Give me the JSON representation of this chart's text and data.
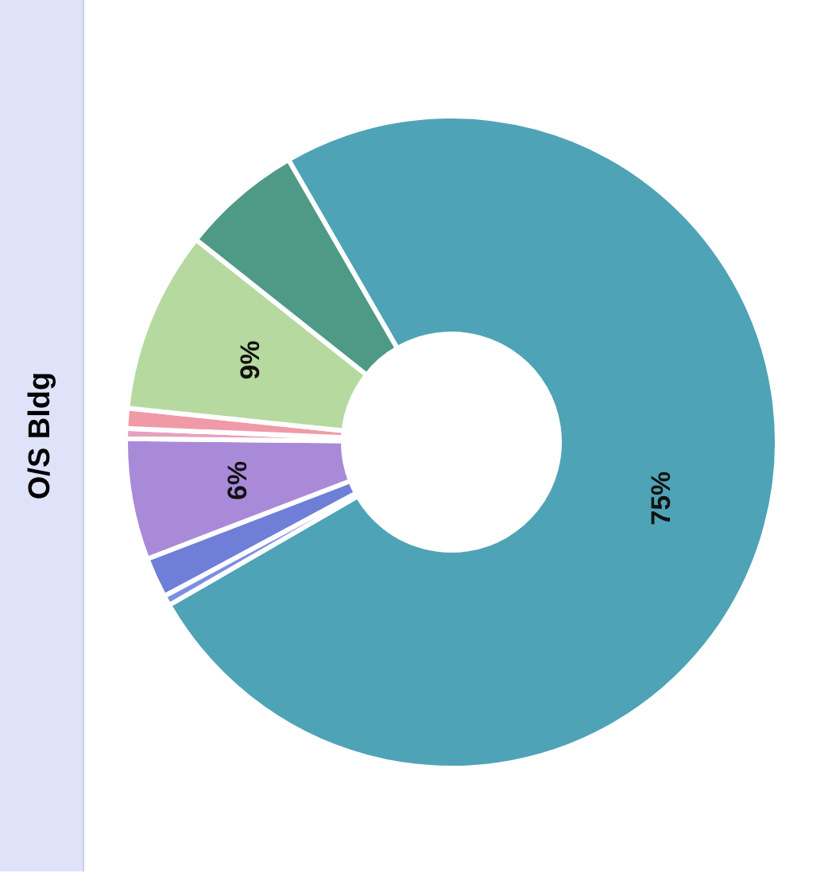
{
  "chart_data": {
    "type": "donut",
    "title": "O/S Bldg",
    "categories": [
      null,
      null,
      null,
      null,
      null,
      null,
      null,
      null
    ],
    "values": [
      75,
      0.5,
      2,
      6,
      0.5,
      1,
      9,
      6
    ],
    "colors": [
      "#4fa3b6",
      "#7b8fe0",
      "#6f7fd8",
      "#a98ad8",
      "#e8a0c0",
      "#f09aa8",
      "#b6d9a0",
      "#4f9a86"
    ],
    "value_labels": [
      "75%",
      null,
      null,
      "6%",
      null,
      null,
      "9%",
      null
    ],
    "legend": false
  }
}
